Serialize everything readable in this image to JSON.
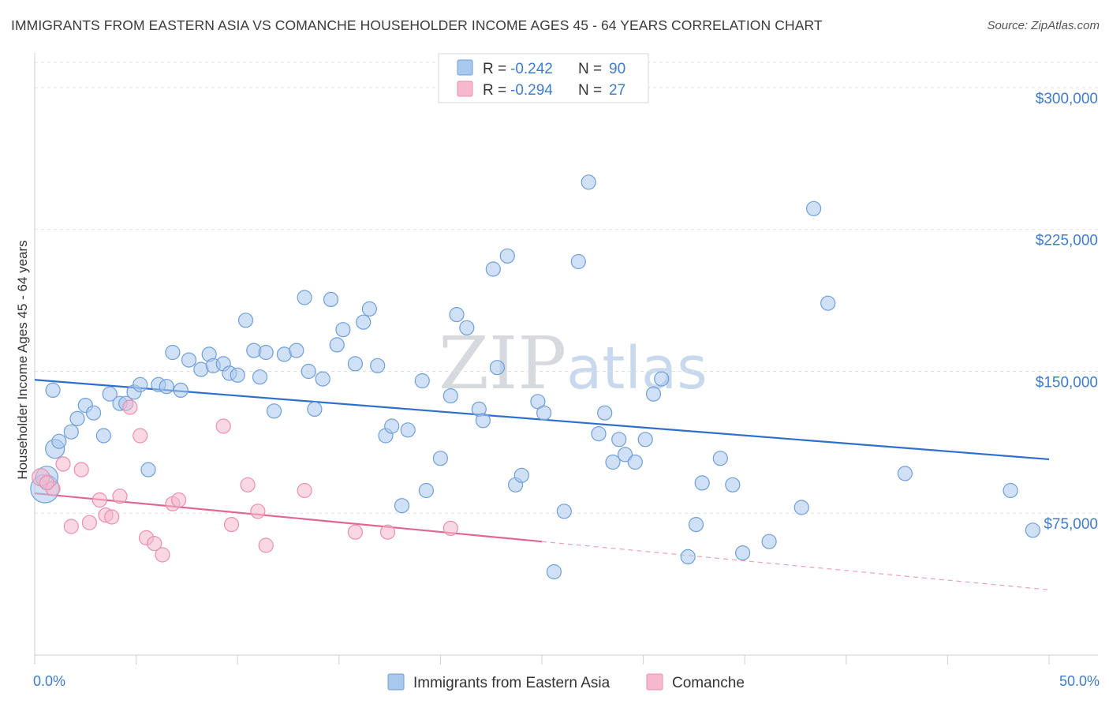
{
  "title": "IMMIGRANTS FROM EASTERN ASIA VS COMANCHE HOUSEHOLDER INCOME AGES 45 - 64 YEARS CORRELATION CHART",
  "source": "Source: ZipAtlas.com",
  "watermark": {
    "zip": "ZIP",
    "atlas": "atlas"
  },
  "legend": {
    "rows": [
      {
        "r_label": "R = ",
        "r_value": "-0.242",
        "n_label": "N = ",
        "n_value": "90",
        "color": "#a9c8ee"
      },
      {
        "r_label": "R = ",
        "r_value": "-0.294",
        "n_label": "N = ",
        "n_value": "27",
        "color": "#f5b8cc"
      }
    ]
  },
  "bottom_legend": [
    {
      "label": "Immigrants from Eastern Asia",
      "color": "#a9c8ee"
    },
    {
      "label": "Comanche",
      "color": "#f5b8cc"
    }
  ],
  "chart_data": {
    "type": "scatter",
    "xlabel": "",
    "ylabel": "Householder Income Ages 45 - 64 years",
    "xlim": [
      0,
      50
    ],
    "ylim": [
      0,
      315000
    ],
    "x_tick_labels": [
      "0.0%",
      "50.0%"
    ],
    "y_ticks": [
      75000,
      150000,
      225000,
      300000
    ],
    "y_tick_labels": [
      "$75,000",
      "$150,000",
      "$225,000",
      "$300,000"
    ],
    "grid": true,
    "series": [
      {
        "name": "Immigrants from Eastern Asia",
        "color": "#a9c8ee",
        "stroke": "#6f9fd8",
        "trend": {
          "x": [
            0,
            50
          ],
          "y": [
            145500,
            103500
          ],
          "color": "#2f6fcc"
        },
        "points": [
          [
            0.5,
            88000
          ],
          [
            0.6,
            94000
          ],
          [
            1.0,
            109000
          ],
          [
            1.2,
            113000
          ],
          [
            1.8,
            118000
          ],
          [
            2.1,
            125000
          ],
          [
            2.5,
            132000
          ],
          [
            2.9,
            128000
          ],
          [
            3.4,
            116000
          ],
          [
            3.7,
            138000
          ],
          [
            4.2,
            133000
          ],
          [
            4.5,
            133000
          ],
          [
            4.9,
            139000
          ],
          [
            5.2,
            143000
          ],
          [
            5.6,
            98000
          ],
          [
            6.1,
            143000
          ],
          [
            6.5,
            142000
          ],
          [
            7.2,
            140000
          ],
          [
            6.8,
            160000
          ],
          [
            7.6,
            156000
          ],
          [
            8.2,
            151000
          ],
          [
            8.6,
            159000
          ],
          [
            8.8,
            153000
          ],
          [
            9.3,
            154000
          ],
          [
            9.6,
            149000
          ],
          [
            10.0,
            148000
          ],
          [
            10.4,
            177000
          ],
          [
            10.8,
            161000
          ],
          [
            11.1,
            147000
          ],
          [
            11.4,
            160000
          ],
          [
            11.8,
            129000
          ],
          [
            12.3,
            159000
          ],
          [
            12.9,
            161000
          ],
          [
            13.3,
            189000
          ],
          [
            13.5,
            150000
          ],
          [
            13.8,
            130000
          ],
          [
            14.2,
            146000
          ],
          [
            14.6,
            188000
          ],
          [
            14.9,
            164000
          ],
          [
            15.2,
            172000
          ],
          [
            15.8,
            154000
          ],
          [
            16.2,
            176000
          ],
          [
            16.5,
            183000
          ],
          [
            16.9,
            153000
          ],
          [
            17.3,
            116000
          ],
          [
            17.6,
            121000
          ],
          [
            18.1,
            79000
          ],
          [
            18.4,
            119000
          ],
          [
            19.1,
            145000
          ],
          [
            19.3,
            87000
          ],
          [
            20.0,
            104000
          ],
          [
            20.5,
            137000
          ],
          [
            20.8,
            180000
          ],
          [
            21.3,
            173000
          ],
          [
            21.9,
            130000
          ],
          [
            22.1,
            124000
          ],
          [
            22.8,
            152000
          ],
          [
            22.6,
            204000
          ],
          [
            23.3,
            211000
          ],
          [
            23.7,
            90000
          ],
          [
            24.0,
            95000
          ],
          [
            24.8,
            134000
          ],
          [
            25.1,
            128000
          ],
          [
            25.6,
            44000
          ],
          [
            26.1,
            76000
          ],
          [
            26.8,
            208000
          ],
          [
            27.3,
            250000
          ],
          [
            27.8,
            117000
          ],
          [
            28.1,
            128000
          ],
          [
            28.5,
            102000
          ],
          [
            28.8,
            114000
          ],
          [
            29.1,
            106000
          ],
          [
            29.6,
            102000
          ],
          [
            30.1,
            114000
          ],
          [
            30.5,
            138000
          ],
          [
            30.9,
            146000
          ],
          [
            32.2,
            52000
          ],
          [
            32.6,
            69000
          ],
          [
            32.9,
            91000
          ],
          [
            33.8,
            104000
          ],
          [
            34.4,
            90000
          ],
          [
            34.9,
            54000
          ],
          [
            36.2,
            60000
          ],
          [
            37.8,
            78000
          ],
          [
            38.4,
            236000
          ],
          [
            39.1,
            186000
          ],
          [
            42.9,
            96000
          ],
          [
            48.1,
            87000
          ],
          [
            49.2,
            66000
          ],
          [
            0.9,
            140000
          ]
        ]
      },
      {
        "name": "Comanche",
        "color": "#f5b8cc",
        "stroke": "#ea8fae",
        "trend": {
          "x": [
            0,
            50
          ],
          "y": [
            85500,
            34500
          ],
          "solid_until_x": 25,
          "color": "#e06890"
        },
        "points": [
          [
            0.3,
            94000
          ],
          [
            0.9,
            88000
          ],
          [
            1.4,
            101000
          ],
          [
            1.8,
            68000
          ],
          [
            2.3,
            98000
          ],
          [
            2.7,
            70000
          ],
          [
            3.2,
            82000
          ],
          [
            3.5,
            74000
          ],
          [
            3.8,
            73000
          ],
          [
            4.2,
            84000
          ],
          [
            4.7,
            131000
          ],
          [
            5.2,
            116000
          ],
          [
            5.5,
            62000
          ],
          [
            5.9,
            59000
          ],
          [
            6.3,
            53000
          ],
          [
            6.8,
            80000
          ],
          [
            7.1,
            82000
          ],
          [
            9.3,
            121000
          ],
          [
            9.7,
            69000
          ],
          [
            10.5,
            90000
          ],
          [
            11.0,
            76000
          ],
          [
            11.4,
            58000
          ],
          [
            13.3,
            87000
          ],
          [
            15.8,
            65000
          ],
          [
            17.4,
            65000
          ],
          [
            20.5,
            67000
          ],
          [
            0.6,
            91000
          ]
        ]
      }
    ]
  }
}
